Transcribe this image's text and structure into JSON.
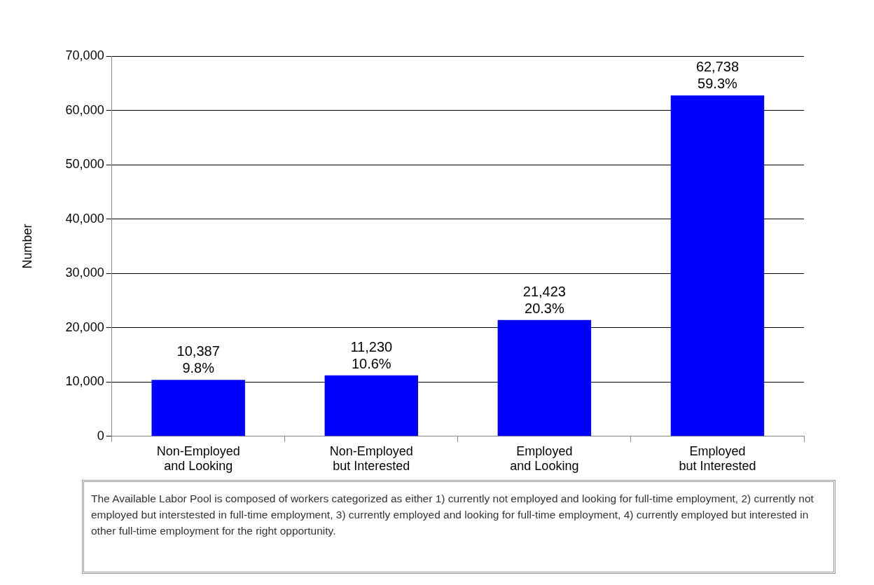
{
  "chart_data": {
    "type": "bar",
    "ylabel": "Number",
    "categories": [
      "Non-Employed\nand Looking",
      "Non-Employed\nbut Interested",
      "Employed\nand Looking",
      "Employed\nbut Interested"
    ],
    "values": [
      10387,
      11230,
      21423,
      62738
    ],
    "value_labels": [
      "10,387\n9.8%",
      "11,230\n10.6%",
      "21,423\n20.3%",
      "62,738\n59.3%"
    ],
    "color": "#0000ff",
    "ylim": [
      0,
      70000
    ],
    "yticks": [
      0,
      {
        "value": 10000,
        "label": "10,000"
      },
      {
        "value": 20000,
        "label": "20,000"
      },
      {
        "value": 30000,
        "label": "30,000"
      },
      {
        "value": 40000,
        "label": "40,000"
      },
      {
        "value": 50000,
        "label": "50,000"
      },
      {
        "value": 60000,
        "label": "60,000"
      },
      {
        "value": 70000,
        "label": "70,000"
      }
    ],
    "grid": "y",
    "legend": false,
    "annotations": [
      "The Available Labor Pool is composed of workers categorized as either 1) currently not employed and  looking for full-time employment, 2) currently not employed but interstested in full-time employment, 3) currently employed and looking for full-time employment, 4) currently employed  but interested in other full-time employment for the right opportunity."
    ]
  }
}
